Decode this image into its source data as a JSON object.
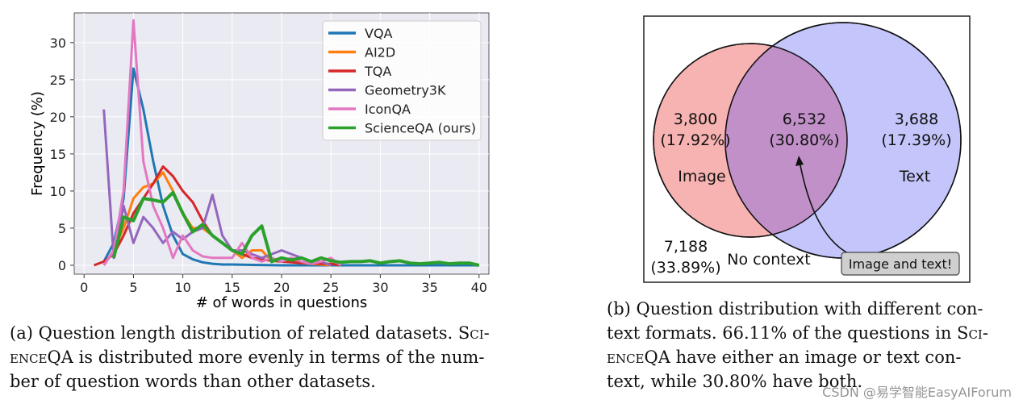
{
  "chart_data": [
    {
      "type": "line",
      "xlabel": "# of words in questions",
      "ylabel": "Frequency (%)",
      "xlim": [
        -1,
        41
      ],
      "ylim": [
        -1.2,
        34
      ],
      "xticks": [
        0,
        5,
        10,
        15,
        20,
        25,
        30,
        35,
        40
      ],
      "yticks": [
        0,
        5,
        10,
        15,
        20,
        25,
        30
      ],
      "grid": true,
      "legend": "top-right",
      "series": [
        {
          "name": "VQA",
          "color": "#1f77b4",
          "x": [
            2,
            3,
            4,
            5,
            6,
            7,
            8,
            9,
            10,
            11,
            12,
            13,
            14,
            15,
            17,
            20,
            25,
            30,
            35,
            40
          ],
          "y": [
            0.5,
            3,
            9,
            26.5,
            21,
            14,
            8,
            4,
            1.5,
            0.8,
            0.4,
            0.2,
            0.1,
            0.1,
            0.05,
            0,
            0,
            0,
            0,
            0
          ]
        },
        {
          "name": "AI2D",
          "color": "#ff7f0e",
          "x": [
            2,
            3,
            4,
            5,
            6,
            7,
            8,
            9,
            10,
            11,
            12,
            13,
            14,
            15,
            16,
            17,
            18,
            19,
            20,
            21,
            22,
            23,
            24,
            25
          ],
          "y": [
            0,
            2,
            5,
            9,
            10.5,
            11,
            12.5,
            10,
            7,
            5,
            5,
            4,
            3,
            2,
            1,
            2,
            2,
            0.5,
            1,
            0.5,
            0.3,
            0.2,
            0.1,
            0
          ]
        },
        {
          "name": "TQA",
          "color": "#d62728",
          "x": [
            1,
            2,
            3,
            4,
            5,
            6,
            7,
            8,
            9,
            10,
            11,
            12,
            13,
            14,
            15,
            16,
            17,
            18,
            19,
            20,
            21,
            22,
            23,
            24,
            25,
            26
          ],
          "y": [
            0,
            0.5,
            1.5,
            4,
            7,
            9,
            11,
            13.3,
            12,
            10,
            8.5,
            6,
            4,
            3,
            2,
            1.5,
            1,
            0.8,
            0.6,
            0.5,
            0.4,
            0.3,
            0.3,
            0.2,
            0.2,
            0
          ]
        },
        {
          "name": "Geometry3K",
          "color": "#9467bd",
          "x": [
            2,
            3,
            4,
            5,
            6,
            7,
            8,
            9,
            10,
            11,
            12,
            13,
            14,
            15,
            16,
            17,
            18,
            19,
            20,
            21,
            22,
            23,
            24,
            25
          ],
          "y": [
            21,
            1,
            8,
            3,
            6.5,
            5,
            3,
            4.5,
            3.5,
            4.5,
            5,
            9.5,
            4,
            2,
            2,
            1.5,
            1,
            1.5,
            2,
            1.5,
            1,
            0.5,
            0.5,
            0
          ]
        },
        {
          "name": "IconQA",
          "color": "#e377c2",
          "x": [
            2,
            3,
            4,
            5,
            6,
            7,
            8,
            9,
            10,
            11,
            12,
            13,
            14,
            15,
            16,
            17,
            18,
            19,
            20,
            21,
            22,
            23,
            24,
            25,
            26
          ],
          "y": [
            0,
            2,
            10,
            33,
            14,
            8,
            5,
            1,
            4,
            2,
            1.2,
            1,
            1,
            1,
            3,
            1,
            0.5,
            1,
            0.5,
            1,
            0.5,
            0.2,
            0.5,
            1,
            0
          ]
        },
        {
          "name": "ScienceQA (ours)",
          "color": "#2ca02c",
          "x": [
            3,
            4,
            5,
            6,
            7,
            8,
            9,
            10,
            11,
            12,
            13,
            14,
            15,
            16,
            17,
            18,
            19,
            20,
            21,
            22,
            23,
            24,
            25,
            26,
            27,
            28,
            29,
            30,
            31,
            32,
            33,
            34,
            35,
            36,
            37,
            38,
            39,
            40
          ],
          "y": [
            1,
            6.5,
            6,
            9,
            8.8,
            8.5,
            9.8,
            7,
            4.5,
            5.5,
            4,
            3,
            2,
            1.5,
            4,
            5.3,
            0.5,
            1,
            0.7,
            1,
            0.5,
            1,
            0.6,
            0.4,
            0.5,
            0.5,
            0.6,
            0.3,
            0.5,
            0.6,
            0.3,
            0.2,
            0.3,
            0.4,
            0.2,
            0.3,
            0.3,
            0
          ]
        }
      ]
    },
    {
      "type": "venn",
      "sets": [
        {
          "name": "Image",
          "color": "#f7b2b2"
        },
        {
          "name": "Text",
          "color": "#c4c6fb"
        }
      ],
      "overlap_color": "#c190c8",
      "regions": [
        {
          "region": "Image",
          "count": "3,800",
          "percent": "(17.92%)"
        },
        {
          "region": "Image and Text",
          "count": "6,532",
          "percent": "(30.80%)"
        },
        {
          "region": "Text",
          "count": "3,688",
          "percent": "(17.39%)"
        },
        {
          "region": "No context",
          "count": "7,188",
          "percent": "(33.89%)"
        }
      ],
      "no_context_label": "No context",
      "callout": "Image and text!"
    }
  ],
  "captions": {
    "a": {
      "line1a": "(a) Question length distribution of related datasets. S",
      "line1b": "ci-",
      "line2a": "ence",
      "line2b": "QA is distributed more evenly in terms of the num-",
      "line3": "ber of question words than other datasets."
    },
    "b": {
      "line1": "(b) Question distribution with different con-",
      "line2a": "text formats. 66.11% of the questions in S",
      "line2b": "ci-",
      "line3a": "ence",
      "line3b": "QA have either an image or text con-",
      "line4": "text, while 30.80% have both."
    }
  },
  "watermark": "CSDN @易学智能EasyAIForum"
}
